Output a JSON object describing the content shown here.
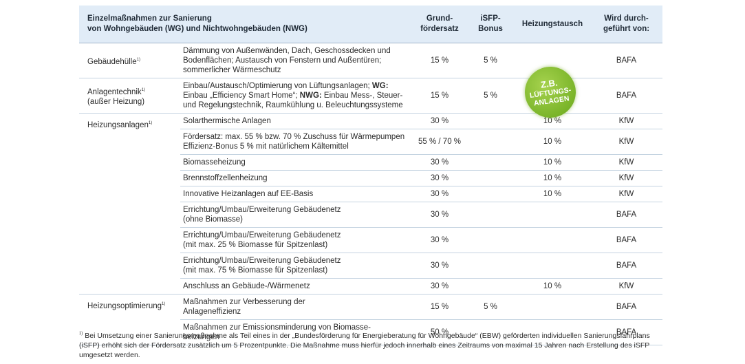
{
  "header": {
    "columns": [
      {
        "lines": [
          "Einzelmaßnahmen zur Sanierung",
          "von Wohngebäuden (WG) und Nichtwohngebäuden (NWG)"
        ]
      },
      {
        "lines": [
          "Grund-",
          "fördersatz"
        ]
      },
      {
        "lines": [
          "iSFP-",
          "Bonus"
        ]
      },
      {
        "lines": [
          "Heizungstausch"
        ]
      },
      {
        "lines": [
          "Wird durch-",
          "geführt von:"
        ]
      }
    ]
  },
  "footnote_marker": "1)",
  "rows": [
    {
      "group": [
        "Gebäudehülle"
      ],
      "description": [
        "Dämmung von Außenwänden, Dach, Geschossdecken und",
        "Bodenflächen; Austausch von Fenstern und Außentüren;",
        "sommerlicher Wärmeschutz"
      ],
      "base_rate": "15 %",
      "isfp_bonus": "5 %",
      "executed_by": "BAFA"
    },
    {
      "group": [
        "Anlagentechnik",
        "(außer Heizung)"
      ],
      "description": [
        [
          "Einbau/Austausch/Optimierung von Lüftungsanlagen; ",
          {
            "text": "WG:",
            "bold": true
          }
        ],
        [
          "Einbau „Efficiency Smart Home“; ",
          {
            "text": "NWG:",
            "bold": true
          },
          " Einbau Mess-, Steuer-"
        ],
        "und Regelungstechnik, Raumkühlung u. Beleuchtungssysteme"
      ],
      "base_rate": "15 %",
      "isfp_bonus": "5 %",
      "executed_by": "BAFA"
    },
    {
      "group": [
        "Heizungsanlagen"
      ],
      "description": [
        "Solarthermische Anlagen"
      ],
      "base_rate": "30 %",
      "heating_swap": "10 %",
      "executed_by": "KfW"
    },
    {
      "description": [
        "Fördersatz: max. 55 % bzw. 70 % Zuschuss für Wärmepumpen",
        "Effizienz-Bonus 5 % mit natürlichem Kältemittel"
      ],
      "base_rate": "55 % / 70 %",
      "heating_swap": "10 %",
      "executed_by": "KfW"
    },
    {
      "description": [
        "Biomasseheizung"
      ],
      "base_rate": "30 %",
      "heating_swap": "10 %",
      "executed_by": "KfW"
    },
    {
      "description": [
        "Brennstoffzellenheizung"
      ],
      "base_rate": "30 %",
      "heating_swap": "10 %",
      "executed_by": "KfW"
    },
    {
      "description": [
        "Innovative Heizanlagen auf EE-Basis"
      ],
      "base_rate": "30 %",
      "heating_swap": "10 %",
      "executed_by": "KfW"
    },
    {
      "description": [
        "Errichtung/Umbau/Erweiterung Gebäudenetz",
        "(ohne Biomasse)"
      ],
      "base_rate": "30 %",
      "executed_by": "BAFA"
    },
    {
      "description": [
        "Errichtung/Umbau/Erweiterung Gebäudenetz",
        "(mit max. 25 % Biomasse für Spitzenlast)"
      ],
      "base_rate": "30 %",
      "executed_by": "BAFA"
    },
    {
      "description": [
        "Errichtung/Umbau/Erweiterung Gebäudenetz",
        "(mit max. 75 % Biomasse für Spitzenlast)"
      ],
      "base_rate": "30 %",
      "executed_by": "BAFA"
    },
    {
      "description": [
        "Anschluss an Gebäude-/Wärmenetz"
      ],
      "base_rate": "30 %",
      "heating_swap": "10 %",
      "executed_by": "KfW"
    },
    {
      "group": [
        "Heizungsoptimierung"
      ],
      "description": [
        "Maßnahmen zur Verbesserung der",
        "Anlageneffizienz"
      ],
      "base_rate": "15 %",
      "isfp_bonus": "5 %",
      "executed_by": "BAFA"
    },
    {
      "description": [
        "Maßnahmen zur Emissionsminderung von Biomasse-",
        "heizungen"
      ],
      "base_rate": "50 %",
      "executed_by": "BAFA"
    }
  ],
  "badge": {
    "lines": [
      "Z.B.",
      "LÜFTUNGS-",
      "ANLAGEN"
    ]
  },
  "footnote": "Bei Umsetzung einer Sanierungsmaßnahme als Teil eines in der „Bundesförderung für Energieberatung für Wohngebäude“ (EBW) geförderten individuellen Sanierungsfahrplans (iSFP) erhöht sich der Fördersatz zusätzlich um 5 Prozentpunkte. Die Maßnahme muss hierfür jedoch innerhalb eines Zeitraums von maximal 15 Jahren nach Erstellung des iSFP umgesetzt werden."
}
